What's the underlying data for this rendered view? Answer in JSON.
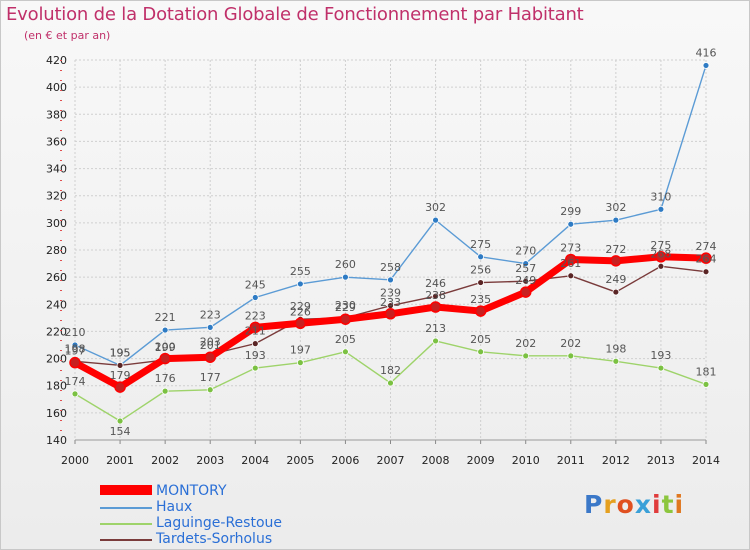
{
  "chart_data": {
    "type": "line",
    "title": "Evolution de la Dotation Globale de Fonctionnement par Habitant",
    "subtitle": "(en € et par an)",
    "x": [
      "2000",
      "2001",
      "2002",
      "2003",
      "2004",
      "2005",
      "2006",
      "2007",
      "2008",
      "2009",
      "2010",
      "2011",
      "2012",
      "2013",
      "2014"
    ],
    "ylim": [
      140,
      420
    ],
    "yticks": [
      140,
      160,
      180,
      200,
      220,
      240,
      260,
      280,
      300,
      320,
      340,
      360,
      380,
      400,
      420
    ],
    "grid": true,
    "series": [
      {
        "name": "MONTORY",
        "color": "#ff0000",
        "marker": "#c82020",
        "values": [
          197,
          179,
          200,
          201,
          223,
          226,
          229,
          233,
          238,
          235,
          249,
          273,
          272,
          275,
          274
        ]
      },
      {
        "name": "Haux",
        "color": "#5b9bd5",
        "marker": "#2e7bc4",
        "values": [
          210,
          195,
          221,
          223,
          245,
          255,
          260,
          258,
          302,
          275,
          270,
          299,
          302,
          310,
          416
        ]
      },
      {
        "name": "Laguinge-Restoue",
        "color": "#9ed36a",
        "marker": "#7bc142",
        "values": [
          174,
          154,
          176,
          177,
          193,
          197,
          205,
          182,
          213,
          205,
          202,
          202,
          198,
          193,
          181
        ]
      },
      {
        "name": "Tardets-Sorholus",
        "color": "#7a3b3b",
        "marker": "#5a2525",
        "values": [
          198,
          195,
          199,
          203,
          211,
          229,
          230,
          239,
          246,
          256,
          257,
          261,
          249,
          268,
          264
        ]
      }
    ]
  },
  "logo": {
    "letters": [
      "P",
      "r",
      "o",
      "x",
      "i",
      "t",
      "i"
    ],
    "colors": [
      "#3b78c8",
      "#e5a020",
      "#e05020",
      "#3aa0d8",
      "#e03c3c",
      "#8cc63e",
      "#e07820"
    ]
  }
}
